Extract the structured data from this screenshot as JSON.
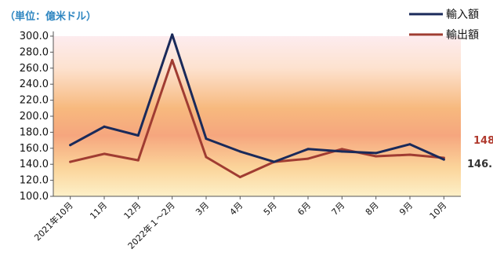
{
  "chart_data": {
    "type": "line",
    "unit_label": "（単位：億米ドル）",
    "categories": [
      "2021年10月",
      "11月",
      "12月",
      "2022年１～2月",
      "3月",
      "4月",
      "5月",
      "6月",
      "7月",
      "8月",
      "9月",
      "10月"
    ],
    "y_ticks": [
      "300.0",
      "280.0",
      "260.0",
      "240.0",
      "220.0",
      "200.0",
      "180.0",
      "160.0",
      "140.0",
      "120.0",
      "100.0"
    ],
    "ylim": [
      100,
      300
    ],
    "series": [
      {
        "name": "輸入額",
        "color": "#1a2a5a",
        "values": [
          164,
          187,
          176,
          302,
          172,
          156,
          143,
          159,
          156,
          154,
          165,
          146
        ],
        "end_label": "146."
      },
      {
        "name": "輸出額",
        "color": "#a03c32",
        "values": [
          143,
          153,
          145,
          270,
          149,
          124,
          143,
          147,
          159,
          150,
          152,
          148
        ],
        "end_label": "148"
      }
    ],
    "end_label_colors": [
      "#333333",
      "#b03a2e"
    ],
    "background": "gradient warm orange to pale pink",
    "legend_position": "top-right"
  }
}
